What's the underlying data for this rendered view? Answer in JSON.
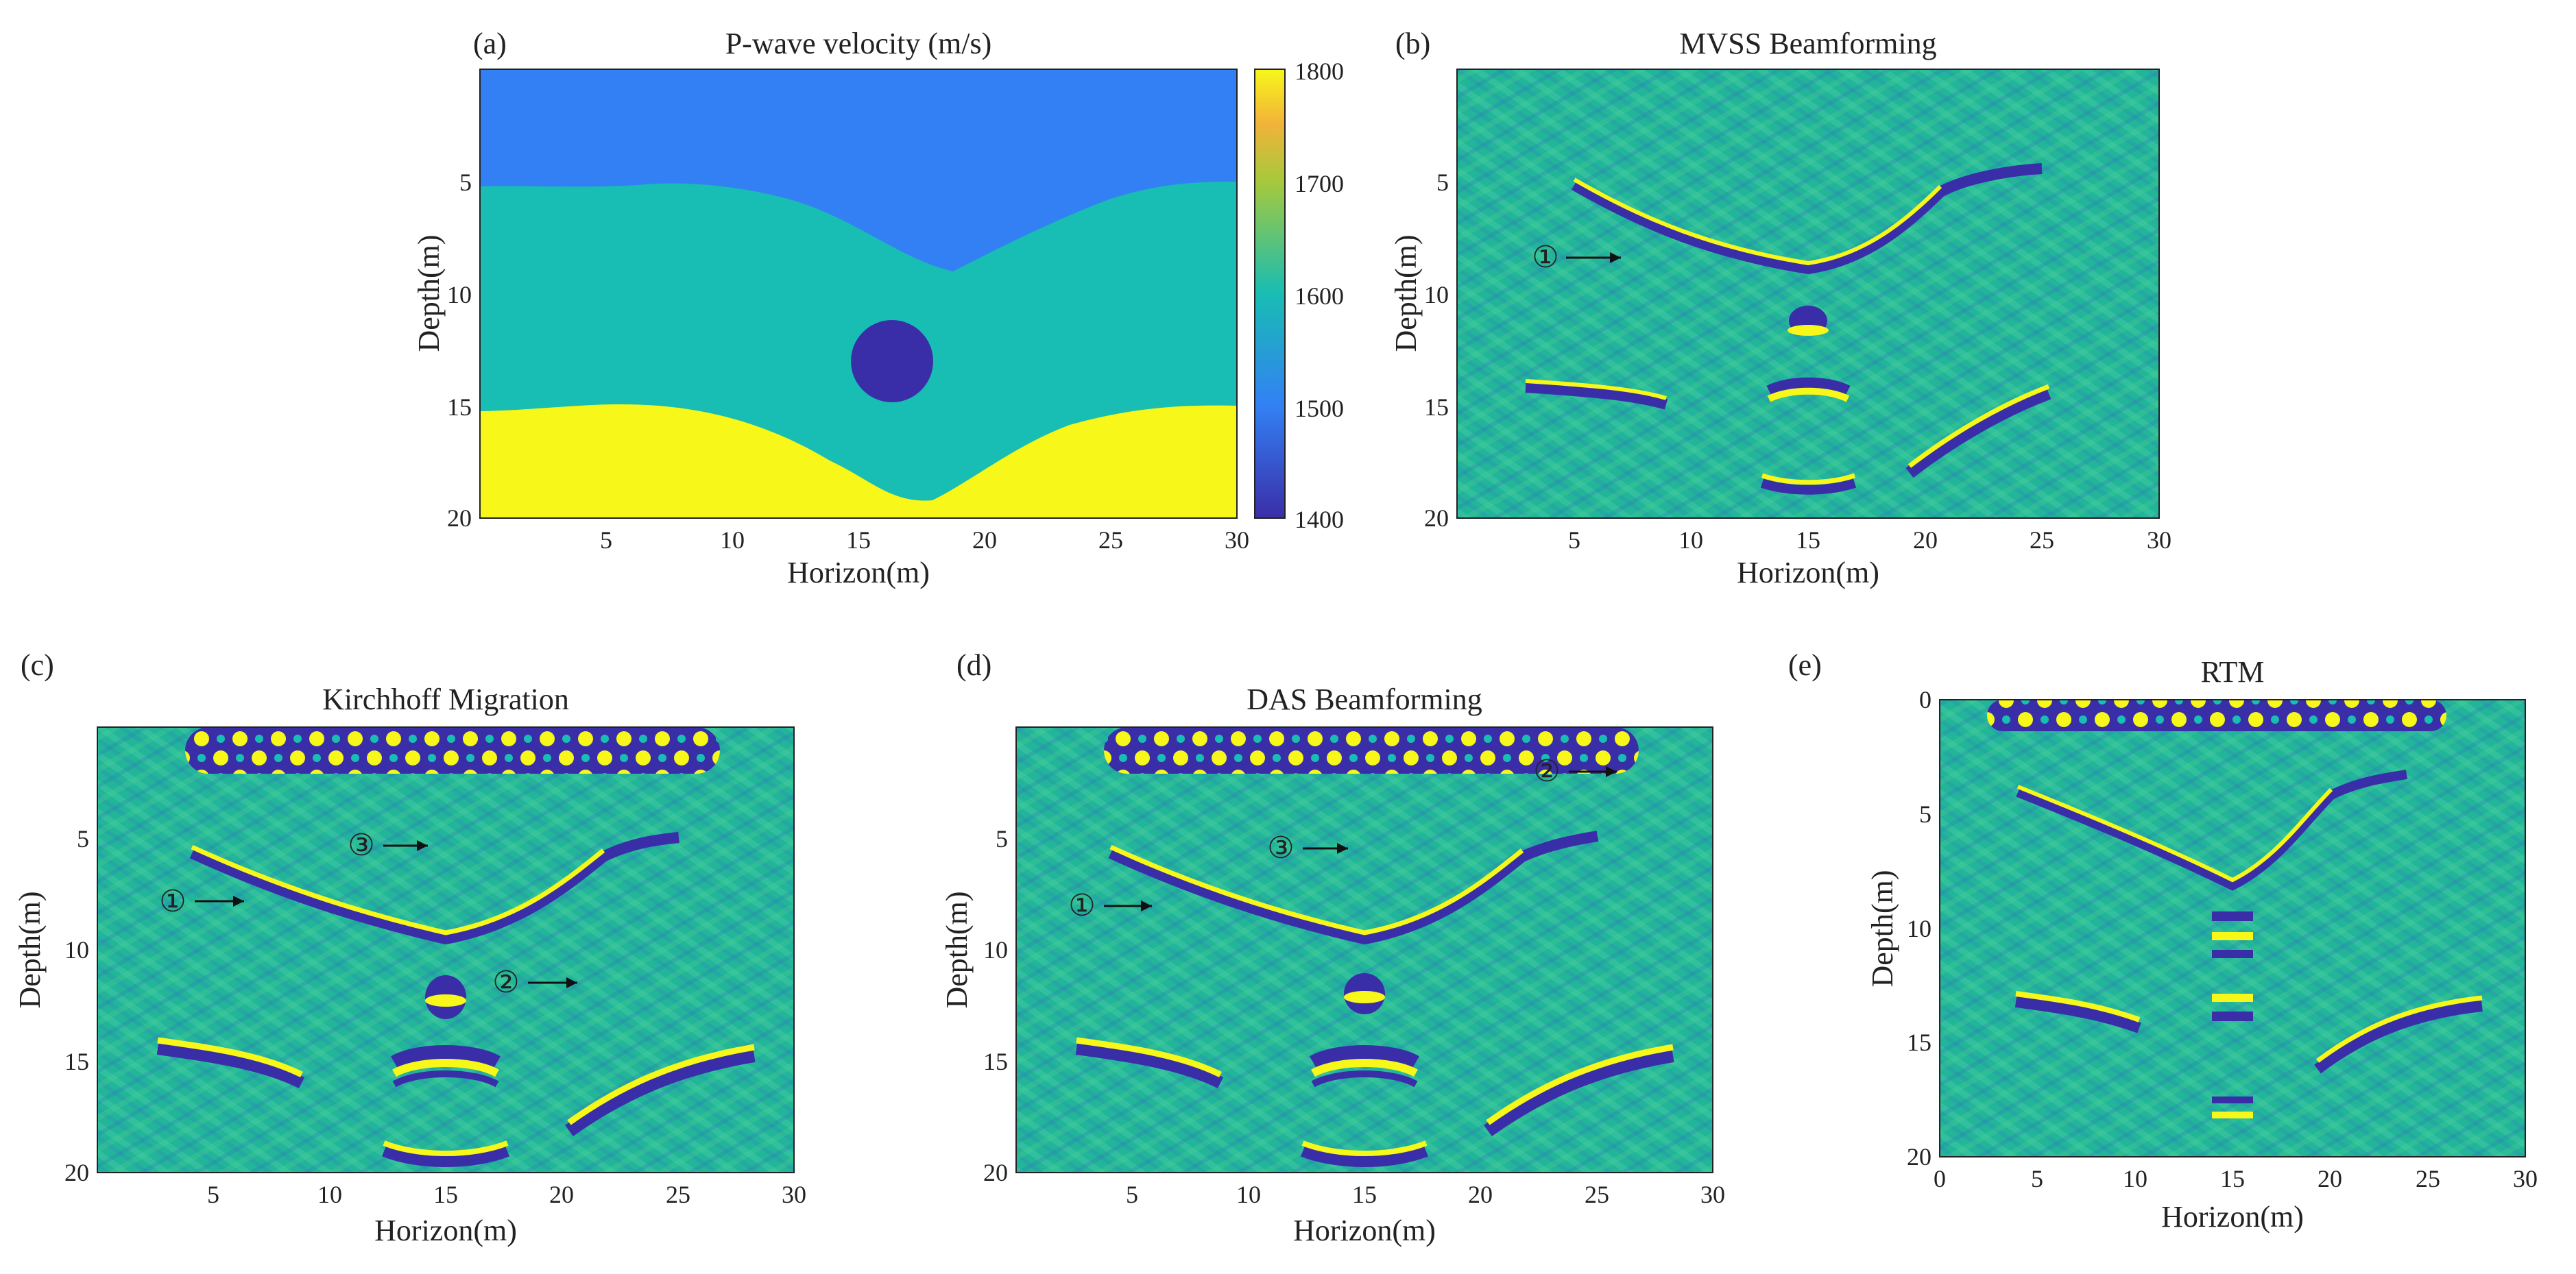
{
  "figure": {
    "panels": [
      {
        "id": "a",
        "letter": "(a)",
        "title": "P-wave velocity (m/s)",
        "xlabel": "Horizon(m)",
        "ylabel": "Depth(m)",
        "xticks": [
          "5",
          "10",
          "15",
          "20",
          "25",
          "30"
        ],
        "yticks": [
          "5",
          "10",
          "15",
          "20"
        ],
        "colorbar_ticks": [
          "1800",
          "1700",
          "1600",
          "1500",
          "1400"
        ]
      },
      {
        "id": "b",
        "letter": "(b)",
        "title": "MVSS Beamforming",
        "xlabel": "Horizon(m)",
        "ylabel": "Depth(m)",
        "xticks": [
          "5",
          "10",
          "15",
          "20",
          "25",
          "30"
        ],
        "yticks": [
          "5",
          "10",
          "15",
          "20"
        ],
        "markers": [
          "①"
        ]
      },
      {
        "id": "c",
        "letter": "(c)",
        "title": "Kirchhoff Migration",
        "xlabel": "Horizon(m)",
        "ylabel": "Depth(m)",
        "xticks": [
          "5",
          "10",
          "15",
          "20",
          "25",
          "30"
        ],
        "yticks": [
          "5",
          "10",
          "15",
          "20"
        ],
        "markers": [
          "①",
          "②",
          "③"
        ]
      },
      {
        "id": "d",
        "letter": "(d)",
        "title": "DAS Beamforming",
        "xlabel": "Horizon(m)",
        "ylabel": "Depth(m)",
        "xticks": [
          "5",
          "10",
          "15",
          "20",
          "25",
          "30"
        ],
        "yticks": [
          "5",
          "10",
          "15",
          "20"
        ],
        "markers": [
          "①",
          "②",
          "③"
        ]
      },
      {
        "id": "e",
        "letter": "(e)",
        "title": "RTM",
        "xlabel": "Horizon(m)",
        "ylabel": "Depth(m)",
        "xticks": [
          "0",
          "5",
          "10",
          "15",
          "20",
          "25",
          "30"
        ],
        "yticks": [
          "0",
          "5",
          "10",
          "15",
          "20"
        ]
      }
    ]
  },
  "colors": {
    "deep_blue": "#3a2ea8",
    "blue": "#3380f5",
    "teal": "#18bdb3",
    "yellow": "#f7f719",
    "seismic_bg": "#22b59a",
    "axis": "#222222"
  },
  "chart_data": [
    {
      "type": "heatmap",
      "title": "P-wave velocity (m/s)",
      "xlabel": "Horizon(m)",
      "ylabel": "Depth(m)",
      "xlim": [
        0,
        30
      ],
      "ylim": [
        20,
        0
      ],
      "colorbar": {
        "range": [
          1400,
          1800
        ],
        "ticks": [
          1400,
          1500,
          1600,
          1700,
          1800
        ]
      },
      "layers": [
        {
          "velocity": 1500,
          "depth_top": 0,
          "boundary_bottom": [
            [
              0,
              5.2
            ],
            [
              4,
              5
            ],
            [
              8,
              5.4
            ],
            [
              12,
              6.8
            ],
            [
              15,
              8.6
            ],
            [
              16,
              9
            ],
            [
              18,
              7.6
            ],
            [
              22,
              5.8
            ],
            [
              26,
              5
            ],
            [
              30,
              5
            ]
          ]
        },
        {
          "velocity": 1600,
          "boundary_bottom": [
            [
              0,
              15.4
            ],
            [
              4,
              14.8
            ],
            [
              8,
              15.2
            ],
            [
              12,
              17.2
            ],
            [
              15,
              19
            ],
            [
              16,
              18.6
            ],
            [
              18,
              17.6
            ],
            [
              22,
              15.8
            ],
            [
              26,
              15.2
            ],
            [
              30,
              15
            ]
          ]
        },
        {
          "velocity": 1800,
          "depth_bottom": 20
        }
      ],
      "anomaly": {
        "shape": "circle",
        "center": [
          15,
          13
        ],
        "radius": 1.8,
        "velocity": 1400
      }
    },
    {
      "type": "heatmap",
      "title": "MVSS Beamforming",
      "xlabel": "Horizon(m)",
      "ylabel": "Depth(m)",
      "xlim": [
        0,
        30
      ],
      "ylim": [
        20,
        0
      ],
      "reflectors": [
        {
          "points": [
            [
              5,
              5.2
            ],
            [
              9,
              7.4
            ],
            [
              12,
              8.4
            ],
            [
              15,
              9
            ],
            [
              17,
              8.8
            ],
            [
              20,
              7.6
            ],
            [
              22,
              5.6
            ],
            [
              25,
              5
            ]
          ]
        },
        {
          "points": [
            [
              3,
              14.6
            ],
            [
              6,
              14.8
            ],
            [
              9,
              15.4
            ]
          ]
        },
        {
          "points": [
            [
              13,
              14.6
            ],
            [
              15,
              14.9
            ],
            [
              17,
              14.6
            ]
          ]
        },
        {
          "points": [
            [
              19,
              18
            ],
            [
              22,
              16
            ],
            [
              25,
              14.6
            ]
          ]
        },
        {
          "points": [
            [
              13,
              18.6
            ],
            [
              15,
              19
            ],
            [
              17,
              18.6
            ]
          ]
        }
      ],
      "annotations": [
        {
          "label": "①",
          "arrow_to": [
            8,
            8.4
          ]
        }
      ]
    },
    {
      "type": "heatmap",
      "title": "Kirchhoff Migration",
      "xlabel": "Horizon(m)",
      "ylabel": "Depth(m)",
      "xlim": [
        0,
        30
      ],
      "ylim": [
        20,
        0
      ],
      "annotations": [
        {
          "label": "①",
          "arrow_to": [
            7,
            7.6
          ]
        },
        {
          "label": "②",
          "arrow_to": [
            20,
            11.6
          ]
        },
        {
          "label": "③",
          "arrow_to": [
            15,
            5.2
          ]
        }
      ]
    },
    {
      "type": "heatmap",
      "title": "DAS Beamforming",
      "xlabel": "Horizon(m)",
      "ylabel": "Depth(m)",
      "xlim": [
        0,
        30
      ],
      "ylim": [
        20,
        0
      ],
      "annotations": [
        {
          "label": "①",
          "arrow_to": [
            6,
            7.6
          ]
        },
        {
          "label": "②",
          "arrow_to": [
            26,
            2
          ]
        },
        {
          "label": "③",
          "arrow_to": [
            15,
            5.6
          ]
        }
      ]
    },
    {
      "type": "heatmap",
      "title": "RTM",
      "xlabel": "Horizon(m)",
      "ylabel": "Depth(m)",
      "xlim": [
        0,
        30
      ],
      "ylim": [
        20,
        0
      ],
      "reflectors": [
        {
          "points": [
            [
              4,
              4
            ],
            [
              8,
              5.6
            ],
            [
              12,
              7.2
            ],
            [
              15,
              8
            ],
            [
              17,
              7.6
            ],
            [
              20,
              5.2
            ],
            [
              24,
              4
            ]
          ]
        },
        {
          "points": [
            [
              4,
              13.2
            ],
            [
              7,
              13.6
            ],
            [
              10,
              14
            ]
          ]
        },
        {
          "points": [
            [
              18,
              15
            ],
            [
              21,
              13.8
            ],
            [
              25,
              13
            ]
          ]
        }
      ]
    }
  ]
}
